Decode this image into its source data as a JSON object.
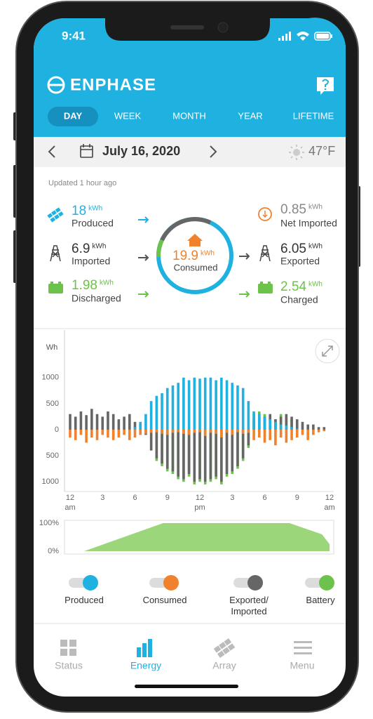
{
  "status_bar": {
    "time": "9:41"
  },
  "header": {
    "brand": "ENPHASE"
  },
  "tabs": [
    "DAY",
    "WEEK",
    "MONTH",
    "YEAR",
    "LIFETIME"
  ],
  "date_bar": {
    "date": "July 16, 2020",
    "temperature": "47°F"
  },
  "updated": "Updated 1 hour ago",
  "flows": {
    "left": [
      {
        "value": 18,
        "unit": "kWh",
        "label": "Produced"
      },
      {
        "value": 6.9,
        "unit": "kWh",
        "label": "Imported"
      },
      {
        "value": 1.98,
        "unit": "kWh",
        "label": "Discharged"
      }
    ],
    "center": {
      "value": 19.9,
      "unit": "kWh",
      "label": "Consumed"
    },
    "right": [
      {
        "value": 0.85,
        "unit": "kWh",
        "label": "Net Imported"
      },
      {
        "value": 6.05,
        "unit": "kWh",
        "label": "Exported"
      },
      {
        "value": 2.54,
        "unit": "kWh",
        "label": "Charged"
      }
    ]
  },
  "chart_data": [
    {
      "type": "bar",
      "y_label": "Wh",
      "x": [
        0,
        0.5,
        1,
        1.5,
        2,
        2.5,
        3,
        3.5,
        4,
        4.5,
        5,
        5.5,
        6,
        6.5,
        7,
        7.5,
        8,
        8.5,
        9,
        9.5,
        10,
        10.5,
        11,
        11.5,
        12,
        12.5,
        13,
        13.5,
        14,
        14.5,
        15,
        15.5,
        16,
        16.5,
        17,
        17.5,
        18,
        18.5,
        19,
        19.5,
        20,
        20.5,
        21,
        21.5,
        22,
        22.5,
        23,
        23.5
      ],
      "xlim": [
        0,
        24
      ],
      "xticks": [
        {
          "value": 0,
          "label": "12",
          "sublabel": "am"
        },
        3,
        6,
        9,
        {
          "value": 12,
          "label": "12",
          "sublabel": "pm"
        },
        {
          "value": 15,
          "label": "3"
        },
        {
          "value": 18,
          "label": "6"
        },
        {
          "value": 21,
          "label": "9"
        },
        {
          "value": 24,
          "label": "12",
          "sublabel": "am"
        }
      ],
      "ylim": [
        -1200,
        1900
      ],
      "yticks": [
        1000,
        500,
        0,
        {
          "value": -500,
          "label": "500"
        },
        {
          "value": -1000,
          "label": "1000"
        }
      ],
      "grid": false,
      "series": [
        {
          "name": "Produced",
          "color": "#1fb2e0",
          "values": [
            0,
            0,
            0,
            0,
            0,
            0,
            0,
            0,
            0,
            0,
            0,
            0,
            50,
            150,
            300,
            550,
            650,
            700,
            800,
            850,
            900,
            1000,
            950,
            1000,
            980,
            1000,
            1000,
            950,
            1000,
            950,
            900,
            850,
            800,
            550,
            350,
            300,
            250,
            200,
            150,
            100,
            80,
            50,
            20,
            0,
            0,
            0,
            0,
            0
          ]
        },
        {
          "name": "Consumed",
          "color": "#f0822e",
          "values": [
            -150,
            -200,
            -100,
            -250,
            -150,
            -200,
            -100,
            -150,
            -200,
            -150,
            -100,
            -200,
            -150,
            -100,
            -80,
            -60,
            -50,
            -80,
            -100,
            -60,
            -50,
            -80,
            -100,
            -60,
            -50,
            -120,
            -60,
            -80,
            -150,
            -60,
            -100,
            -50,
            -80,
            -60,
            -200,
            -150,
            -250,
            -200,
            -300,
            -150,
            -250,
            -200,
            -150,
            -100,
            -200,
            -100,
            -50,
            -30
          ]
        },
        {
          "name": "Exported/\nImported",
          "color": "#666666",
          "values": [
            300,
            250,
            350,
            280,
            400,
            300,
            250,
            350,
            300,
            200,
            250,
            300,
            150,
            100,
            -100,
            -400,
            -550,
            -650,
            -750,
            -800,
            -900,
            -950,
            -850,
            -1000,
            -950,
            -1000,
            -950,
            -900,
            -1000,
            -850,
            -800,
            -700,
            -550,
            -300,
            200,
            300,
            250,
            300,
            200,
            250,
            300,
            250,
            200,
            150,
            100,
            100,
            50,
            50
          ]
        },
        {
          "name": "Battery",
          "color": "#6cc24a",
          "values": [
            0,
            0,
            0,
            0,
            0,
            0,
            0,
            0,
            0,
            0,
            0,
            0,
            0,
            0,
            0,
            0,
            -600,
            -700,
            -800,
            -850,
            -950,
            -1000,
            -900,
            -1050,
            -1000,
            -1050,
            -1000,
            -950,
            -1050,
            -900,
            -850,
            -750,
            -600,
            -350,
            300,
            350,
            300,
            250,
            200,
            300,
            250,
            200,
            150,
            0,
            0,
            0,
            0,
            0
          ]
        }
      ]
    },
    {
      "type": "area",
      "x": [
        0,
        1.3,
        8.6,
        20.3,
        23.3,
        24
      ],
      "xlim": [
        0,
        24
      ],
      "ylim": [
        0,
        100
      ],
      "yticks": [
        {
          "value": 100,
          "label": "100%"
        },
        {
          "value": 0,
          "label": "0%"
        }
      ],
      "series": [
        {
          "color": "#9bd77a",
          "values": [
            0,
            0,
            100,
            100,
            60,
            25
          ]
        }
      ]
    }
  ],
  "nav": [
    "Status",
    "Energy",
    "Array",
    "Menu"
  ]
}
